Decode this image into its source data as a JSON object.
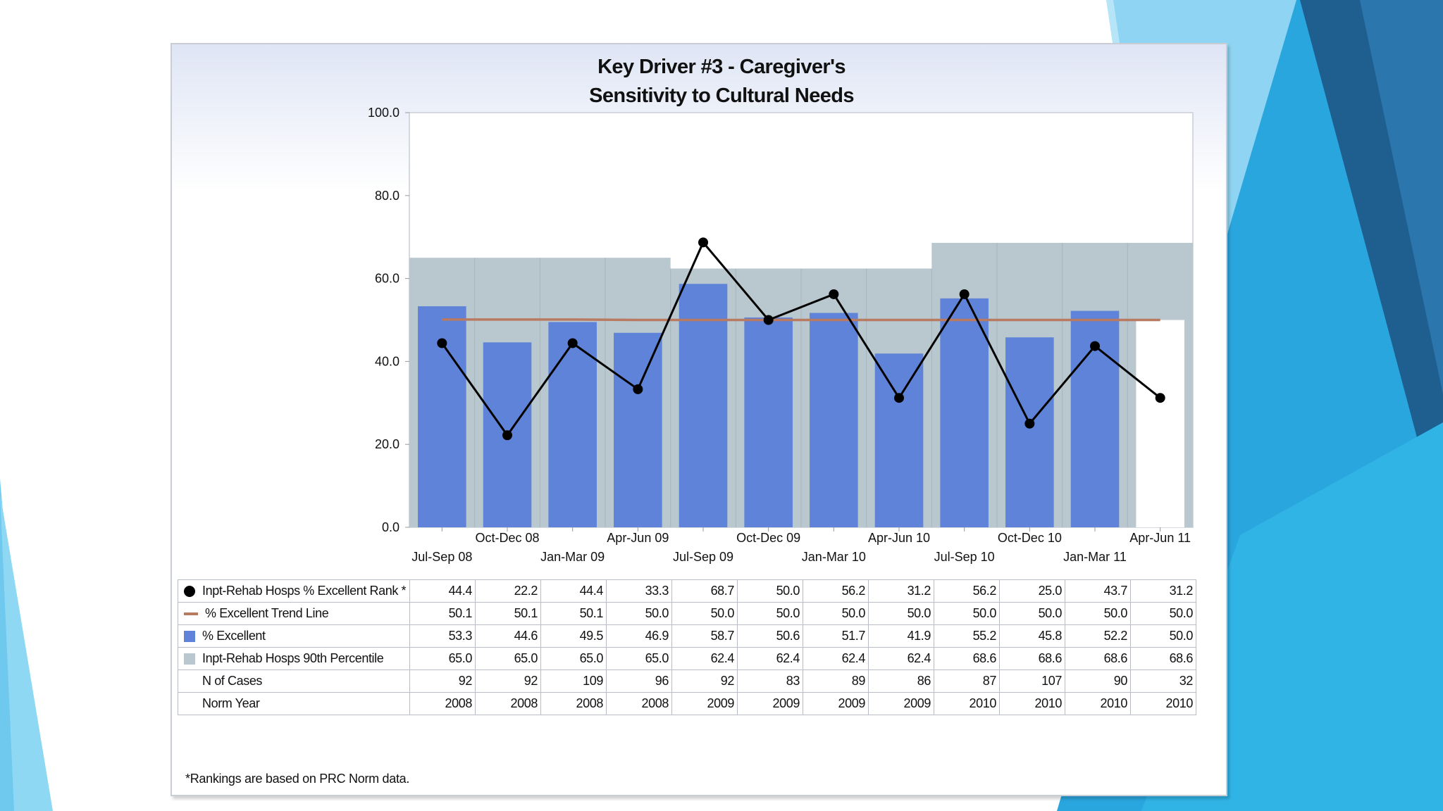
{
  "colors": {
    "excellent_bar": "#5e83d8",
    "percentile_bar": "#b9c7cf",
    "trend_line": "#b97a62",
    "rank_line": "#000000",
    "deco_light": "#7fd0f0",
    "deco_mid": "#29a9e0",
    "deco_dark": "#1e6fa0"
  },
  "chart_data": {
    "type": "bar",
    "title": "Key Driver #3 - Caregiver's Sensitivity to Cultural Needs",
    "categories": [
      "Jul-Sep 08",
      "Oct-Dec 08",
      "Jan-Mar 09",
      "Apr-Jun 09",
      "Jul-Sep 09",
      "Oct-Dec 09",
      "Jan-Mar 10",
      "Apr-Jun 10",
      "Jul-Sep 10",
      "Oct-Dec 10",
      "Jan-Mar 11",
      "Apr-Jun 11"
    ],
    "ylim": [
      0,
      100
    ],
    "yticks": [
      "0.0",
      "20.0",
      "40.0",
      "60.0",
      "80.0",
      "100.0"
    ],
    "series": [
      {
        "name": "Inpt-Rehab Hosps % Excellent Rank *",
        "type": "line",
        "marker": "dot",
        "values": [
          44.4,
          22.2,
          44.4,
          33.3,
          68.7,
          50.0,
          56.2,
          31.2,
          56.2,
          25.0,
          43.7,
          31.2
        ]
      },
      {
        "name": "% Excellent Trend Line",
        "type": "line",
        "values": [
          50.1,
          50.1,
          50.1,
          50.0,
          50.0,
          50.0,
          50.0,
          50.0,
          50.0,
          50.0,
          50.0,
          50.0
        ]
      },
      {
        "name": "% Excellent",
        "type": "bar",
        "values": [
          53.3,
          44.6,
          49.5,
          46.9,
          58.7,
          50.6,
          51.7,
          41.9,
          55.2,
          45.8,
          52.2,
          50.0
        ]
      },
      {
        "name": "Inpt-Rehab Hosps 90th Percentile",
        "type": "bar",
        "values": [
          65.0,
          65.0,
          65.0,
          65.0,
          62.4,
          62.4,
          62.4,
          62.4,
          68.6,
          68.6,
          68.6,
          68.6
        ]
      }
    ],
    "table": {
      "rows": [
        {
          "marker": "dot",
          "label": "Inpt-Rehab Hosps % Excellent Rank *",
          "cells": [
            "44.4",
            "22.2",
            "44.4",
            "33.3",
            "68.7",
            "50.0",
            "56.2",
            "31.2",
            "56.2",
            "25.0",
            "43.7",
            "31.2"
          ]
        },
        {
          "marker": "line",
          "label": "% Excellent Trend Line",
          "cells": [
            "50.1",
            "50.1",
            "50.1",
            "50.0",
            "50.0",
            "50.0",
            "50.0",
            "50.0",
            "50.0",
            "50.0",
            "50.0",
            "50.0"
          ]
        },
        {
          "marker": "blue",
          "label": "% Excellent",
          "cells": [
            "53.3",
            "44.6",
            "49.5",
            "46.9",
            "58.7",
            "50.6",
            "51.7",
            "41.9",
            "55.2",
            "45.8",
            "52.2",
            "50.0"
          ]
        },
        {
          "marker": "gray",
          "label": "Inpt-Rehab Hosps 90th Percentile",
          "cells": [
            "65.0",
            "65.0",
            "65.0",
            "65.0",
            "62.4",
            "62.4",
            "62.4",
            "62.4",
            "68.6",
            "68.6",
            "68.6",
            "68.6"
          ]
        },
        {
          "marker": "none",
          "label": "N of Cases",
          "cells": [
            "92",
            "92",
            "109",
            "96",
            "92",
            "83",
            "89",
            "86",
            "87",
            "107",
            "90",
            "32"
          ]
        },
        {
          "marker": "none",
          "label": "Norm Year",
          "cells": [
            "2008",
            "2008",
            "2008",
            "2008",
            "2009",
            "2009",
            "2009",
            "2009",
            "2010",
            "2010",
            "2010",
            "2010"
          ]
        }
      ]
    },
    "footnote": "*Rankings are based on PRC Norm data."
  }
}
